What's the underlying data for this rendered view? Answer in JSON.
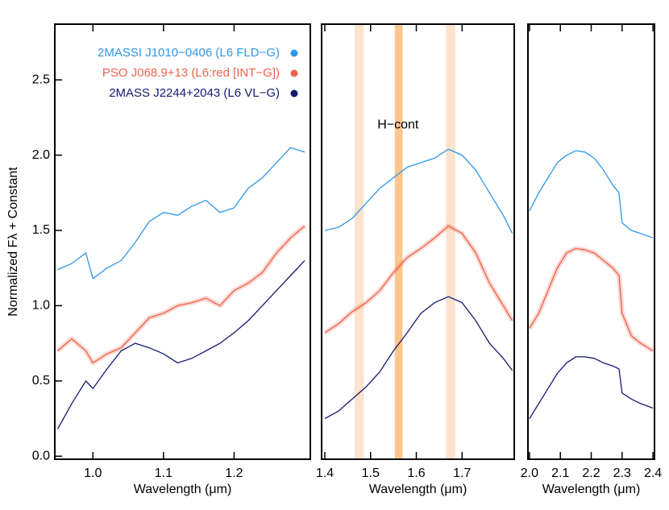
{
  "chart_data": [
    {
      "type": "line",
      "ylabel": "Normalized Fλ + Constant",
      "xlabel": "Wavelength (μm)",
      "xlim": [
        0.946,
        1.308
      ],
      "ylim": [
        -0.02,
        2.87
      ],
      "xticks": [
        {
          "value": 1,
          "label": "1.0"
        },
        1.1,
        1.2
      ],
      "yticks": [
        {
          "value": 0,
          "label": "0.0"
        },
        0.5,
        {
          "value": 1,
          "label": "1.0"
        },
        1.5,
        {
          "value": 2,
          "label": "2.0"
        },
        2.5
      ],
      "x": [
        0.95,
        0.97,
        0.99,
        1.0,
        1.02,
        1.04,
        1.06,
        1.08,
        1.1,
        1.12,
        1.14,
        1.16,
        1.18,
        1.2,
        1.22,
        1.24,
        1.26,
        1.28,
        1.3
      ],
      "series": [
        {
          "name": "2MASSI J1010−0406 (L6 FLD−G)",
          "color": "#2f96e8",
          "values": [
            1.24,
            1.28,
            1.35,
            1.18,
            1.25,
            1.3,
            1.42,
            1.56,
            1.62,
            1.6,
            1.66,
            1.7,
            1.62,
            1.65,
            1.78,
            1.85,
            1.95,
            2.05,
            2.02
          ]
        },
        {
          "name": "PSO J068.9+13 (L6:red [INT−G])",
          "color": "#ef634c",
          "values": [
            0.7,
            0.78,
            0.7,
            0.62,
            0.68,
            0.72,
            0.82,
            0.92,
            0.95,
            1.0,
            1.02,
            1.05,
            1.0,
            1.1,
            1.15,
            1.22,
            1.35,
            1.45,
            1.53
          ]
        },
        {
          "name": "2MASS J2244+2043 (L6 VL−G)",
          "color": "#141a72",
          "values": [
            0.18,
            0.35,
            0.5,
            0.45,
            0.58,
            0.7,
            0.75,
            0.72,
            0.68,
            0.62,
            0.65,
            0.7,
            0.75,
            0.82,
            0.9,
            1.0,
            1.1,
            1.2,
            1.3
          ]
        }
      ]
    },
    {
      "type": "line",
      "xlabel": "Wavelength (μm)",
      "xlim": [
        1.393,
        1.814
      ],
      "ylim": [
        -0.02,
        2.87
      ],
      "xticks": [
        1.4,
        1.5,
        1.6,
        1.7
      ],
      "bands": [
        {
          "range": [
            1.465,
            1.485
          ],
          "color": "#fde3cb"
        },
        {
          "range": [
            1.553,
            1.57
          ],
          "color": "#fbc690"
        },
        {
          "range": [
            1.665,
            1.685
          ],
          "color": "#fde3cb"
        }
      ],
      "annotation": {
        "text": "H−cont",
        "x": 1.56,
        "y": 2.2
      },
      "x": [
        1.4,
        1.43,
        1.46,
        1.49,
        1.52,
        1.55,
        1.58,
        1.61,
        1.64,
        1.67,
        1.7,
        1.73,
        1.76,
        1.79,
        1.81
      ],
      "series": [
        {
          "color": "#2f96e8",
          "values": [
            1.5,
            1.52,
            1.58,
            1.68,
            1.78,
            1.85,
            1.92,
            1.95,
            1.98,
            2.04,
            2.0,
            1.9,
            1.75,
            1.6,
            1.48
          ]
        },
        {
          "color": "#ef634c",
          "values": [
            0.82,
            0.88,
            0.96,
            1.02,
            1.1,
            1.22,
            1.32,
            1.38,
            1.45,
            1.53,
            1.48,
            1.35,
            1.15,
            1.0,
            0.9
          ]
        },
        {
          "color": "#141a72",
          "values": [
            0.25,
            0.3,
            0.38,
            0.46,
            0.56,
            0.7,
            0.82,
            0.95,
            1.02,
            1.06,
            1.02,
            0.9,
            0.75,
            0.65,
            0.57
          ]
        }
      ]
    },
    {
      "type": "line",
      "xlabel": "Wavelength (μm)",
      "xlim": [
        1.995,
        2.405
      ],
      "ylim": [
        -0.02,
        2.87
      ],
      "xticks": [
        {
          "value": 2,
          "label": "2.0"
        },
        2.1,
        2.2,
        2.3,
        2.4
      ],
      "x": [
        2.0,
        2.03,
        2.06,
        2.09,
        2.12,
        2.15,
        2.18,
        2.21,
        2.24,
        2.27,
        2.29,
        2.3,
        2.33,
        2.36,
        2.4
      ],
      "series": [
        {
          "color": "#2f96e8",
          "values": [
            1.63,
            1.75,
            1.85,
            1.95,
            2.0,
            2.03,
            2.02,
            1.98,
            1.9,
            1.8,
            1.75,
            1.55,
            1.5,
            1.48,
            1.45
          ]
        },
        {
          "color": "#ef634c",
          "values": [
            0.85,
            0.95,
            1.1,
            1.25,
            1.35,
            1.38,
            1.37,
            1.35,
            1.3,
            1.25,
            1.2,
            0.95,
            0.8,
            0.75,
            0.7
          ]
        },
        {
          "color": "#141a72",
          "values": [
            0.25,
            0.35,
            0.45,
            0.55,
            0.62,
            0.66,
            0.66,
            0.65,
            0.62,
            0.6,
            0.58,
            0.42,
            0.38,
            0.35,
            0.32
          ]
        }
      ]
    }
  ]
}
